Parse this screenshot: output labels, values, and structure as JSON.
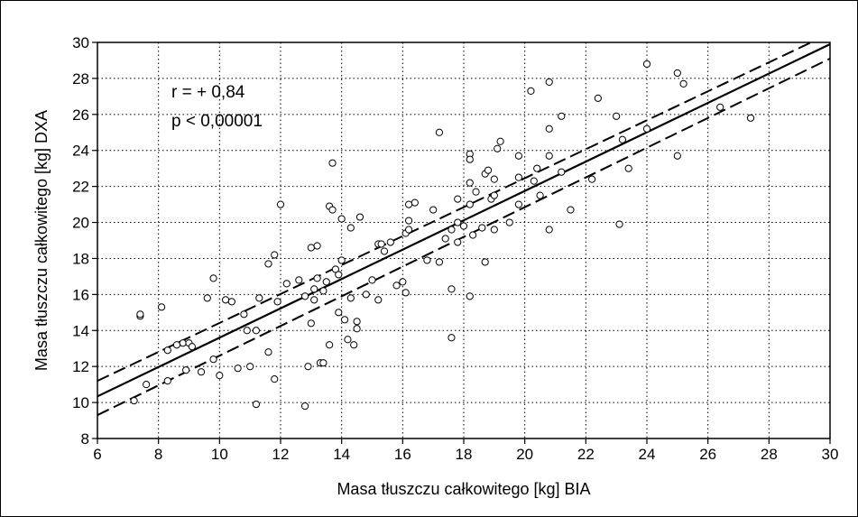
{
  "chart_data": {
    "type": "scatter",
    "xlabel": "Masa tłuszczu całkowitego [kg] BIA",
    "ylabel": "Masa tłuszczu całkowitego [kg] DXA",
    "xlim": [
      6,
      30
    ],
    "ylim": [
      8,
      30
    ],
    "xticks": [
      "6",
      "8",
      "10",
      "12",
      "14",
      "16",
      "18",
      "20",
      "22",
      "24",
      "26",
      "28",
      "30"
    ],
    "yticks": [
      "8",
      "10",
      "12",
      "14",
      "16",
      "18",
      "20",
      "22",
      "24",
      "26",
      "28",
      "30"
    ],
    "grid": true,
    "annotations": [
      "r = + 0,84",
      "p < 0,00001"
    ],
    "regression": {
      "slope": 0.815,
      "intercept": 5.45
    },
    "confidence_band": {
      "upper_at_x6": 11.2,
      "upper_at_x30": 30.5,
      "lower_at_x6": 9.3,
      "lower_at_x30": 29.1
    },
    "points": [
      [
        7.2,
        10.1
      ],
      [
        7.4,
        14.8
      ],
      [
        7.4,
        14.9
      ],
      [
        7.6,
        11.0
      ],
      [
        8.1,
        15.3
      ],
      [
        8.3,
        12.9
      ],
      [
        8.3,
        11.2
      ],
      [
        8.6,
        13.2
      ],
      [
        8.8,
        13.3
      ],
      [
        8.9,
        11.8
      ],
      [
        9.0,
        13.3
      ],
      [
        9.1,
        13.1
      ],
      [
        9.4,
        11.7
      ],
      [
        9.6,
        15.8
      ],
      [
        9.8,
        16.9
      ],
      [
        9.8,
        12.4
      ],
      [
        10.0,
        11.5
      ],
      [
        10.2,
        15.7
      ],
      [
        10.4,
        15.6
      ],
      [
        10.6,
        11.9
      ],
      [
        10.8,
        14.9
      ],
      [
        10.9,
        14.0
      ],
      [
        11.0,
        12.0
      ],
      [
        11.2,
        14.0
      ],
      [
        11.2,
        9.9
      ],
      [
        11.3,
        15.8
      ],
      [
        11.6,
        12.8
      ],
      [
        11.6,
        17.7
      ],
      [
        11.8,
        18.2
      ],
      [
        11.8,
        11.3
      ],
      [
        11.9,
        15.6
      ],
      [
        12.0,
        21.0
      ],
      [
        12.2,
        16.6
      ],
      [
        12.6,
        16.8
      ],
      [
        12.8,
        9.8
      ],
      [
        12.8,
        15.9
      ],
      [
        12.9,
        12.0
      ],
      [
        13.0,
        18.6
      ],
      [
        13.0,
        14.4
      ],
      [
        13.1,
        15.7
      ],
      [
        13.1,
        16.3
      ],
      [
        13.2,
        18.7
      ],
      [
        13.2,
        16.9
      ],
      [
        13.3,
        12.2
      ],
      [
        13.4,
        16.2
      ],
      [
        13.4,
        12.2
      ],
      [
        13.5,
        16.7
      ],
      [
        13.6,
        13.2
      ],
      [
        13.6,
        20.9
      ],
      [
        13.7,
        23.3
      ],
      [
        13.7,
        20.7
      ],
      [
        13.8,
        17.4
      ],
      [
        13.9,
        15.0
      ],
      [
        13.9,
        17.1
      ],
      [
        14.0,
        20.2
      ],
      [
        14.0,
        17.9
      ],
      [
        14.1,
        14.6
      ],
      [
        14.2,
        13.5
      ],
      [
        14.3,
        19.7
      ],
      [
        14.3,
        15.8
      ],
      [
        14.4,
        13.2
      ],
      [
        14.5,
        14.5
      ],
      [
        14.5,
        14.1
      ],
      [
        14.6,
        20.3
      ],
      [
        14.8,
        16.0
      ],
      [
        15.0,
        16.8
      ],
      [
        15.2,
        18.8
      ],
      [
        15.2,
        15.7
      ],
      [
        15.3,
        18.8
      ],
      [
        15.4,
        18.4
      ],
      [
        15.6,
        18.9
      ],
      [
        15.8,
        16.5
      ],
      [
        16.0,
        16.7
      ],
      [
        16.1,
        16.1
      ],
      [
        16.1,
        19.4
      ],
      [
        16.2,
        20.1
      ],
      [
        16.2,
        19.6
      ],
      [
        16.2,
        21.0
      ],
      [
        16.4,
        21.1
      ],
      [
        16.8,
        17.9
      ],
      [
        17.0,
        20.7
      ],
      [
        17.2,
        17.8
      ],
      [
        17.2,
        25.0
      ],
      [
        17.4,
        19.1
      ],
      [
        17.6,
        19.6
      ],
      [
        17.6,
        13.6
      ],
      [
        17.6,
        16.3
      ],
      [
        17.8,
        20.0
      ],
      [
        17.8,
        21.3
      ],
      [
        17.8,
        18.9
      ],
      [
        18.0,
        19.8
      ],
      [
        18.2,
        23.8
      ],
      [
        18.2,
        23.5
      ],
      [
        18.2,
        22.2
      ],
      [
        18.2,
        21.0
      ],
      [
        18.2,
        15.9
      ],
      [
        18.3,
        19.3
      ],
      [
        18.4,
        21.7
      ],
      [
        18.6,
        19.7
      ],
      [
        18.7,
        22.7
      ],
      [
        18.7,
        17.8
      ],
      [
        18.8,
        22.9
      ],
      [
        18.9,
        21.3
      ],
      [
        19.0,
        21.5
      ],
      [
        19.0,
        19.6
      ],
      [
        19.0,
        22.4
      ],
      [
        19.1,
        24.1
      ],
      [
        19.2,
        24.5
      ],
      [
        19.5,
        20.0
      ],
      [
        19.8,
        23.7
      ],
      [
        19.8,
        22.5
      ],
      [
        19.8,
        21.0
      ],
      [
        20.2,
        27.3
      ],
      [
        20.3,
        22.3
      ],
      [
        20.4,
        23.0
      ],
      [
        20.5,
        21.5
      ],
      [
        20.8,
        27.8
      ],
      [
        20.8,
        23.7
      ],
      [
        20.8,
        25.2
      ],
      [
        20.8,
        19.6
      ],
      [
        21.2,
        25.9
      ],
      [
        21.2,
        22.8
      ],
      [
        21.5,
        20.7
      ],
      [
        22.2,
        22.4
      ],
      [
        22.4,
        26.9
      ],
      [
        23.0,
        25.9
      ],
      [
        23.1,
        19.9
      ],
      [
        23.2,
        24.6
      ],
      [
        23.4,
        23.0
      ],
      [
        24.0,
        28.8
      ],
      [
        24.0,
        25.2
      ],
      [
        25.0,
        28.3
      ],
      [
        25.0,
        23.7
      ],
      [
        25.2,
        27.7
      ],
      [
        26.4,
        26.4
      ],
      [
        27.4,
        25.8
      ]
    ]
  }
}
